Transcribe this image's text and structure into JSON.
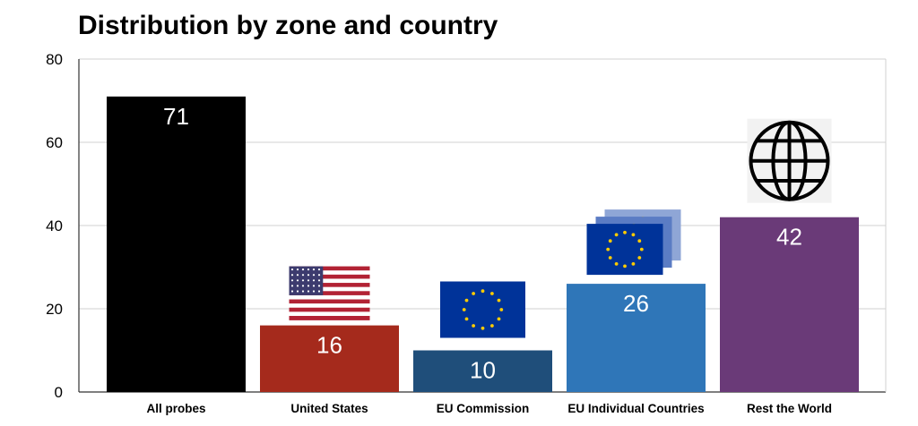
{
  "chart_data": {
    "type": "bar",
    "title": "Distribution by zone and country",
    "xlabel": "",
    "ylabel": "",
    "categories": [
      "All probes",
      "United States",
      "EU Commission",
      "EU Individual Countries",
      "Rest the World"
    ],
    "values": [
      71,
      16,
      10,
      26,
      42
    ],
    "bar_colors": [
      "#000000",
      "#a52a1c",
      "#1f4e7a",
      "#2f76b8",
      "#6a3a78"
    ],
    "bar_icons": [
      "",
      "us-flag-icon",
      "eu-flag-icon",
      "eu-flags-stack-icon",
      "globe-icon"
    ],
    "ylim": [
      0,
      80
    ],
    "yticks": [
      0,
      20,
      40,
      60,
      80
    ],
    "grid": true,
    "legend": "none"
  }
}
